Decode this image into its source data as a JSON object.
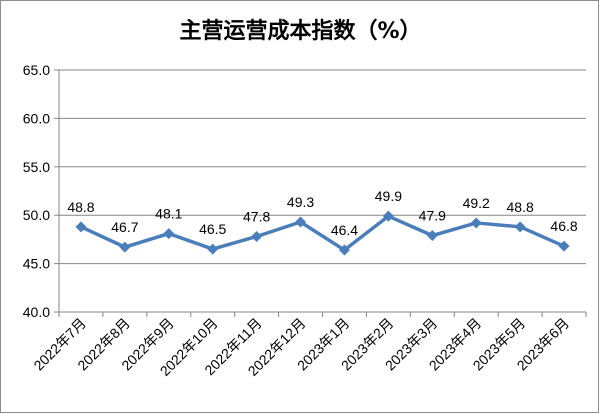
{
  "chart_data": {
    "type": "line",
    "title": "主营运营成本指数（%）",
    "categories": [
      "2022年7月",
      "2022年8月",
      "2022年9月",
      "2022年10月",
      "2022年11月",
      "2022年12月",
      "2023年1月",
      "2023年2月",
      "2023年3月",
      "2023年4月",
      "2023年5月",
      "2023年6月"
    ],
    "series": [
      {
        "values": [
          48.8,
          46.7,
          48.1,
          46.5,
          47.8,
          49.3,
          46.4,
          49.9,
          47.9,
          49.2,
          48.8,
          46.8
        ]
      }
    ],
    "data_labels": [
      "48.8",
      "46.7",
      "48.1",
      "46.5",
      "47.8",
      "49.3",
      "46.4",
      "49.9",
      "47.9",
      "49.2",
      "48.8",
      "46.8"
    ],
    "ylim": [
      40.0,
      65.0
    ],
    "yticks": [
      "40.0",
      "45.0",
      "50.0",
      "55.0",
      "60.0",
      "65.0"
    ],
    "xlabel": "",
    "ylabel": "",
    "grid": "horizontal",
    "legend": "none",
    "colors": {
      "line": "#4a7ebb",
      "grid": "#868686",
      "axis": "#868686"
    }
  }
}
